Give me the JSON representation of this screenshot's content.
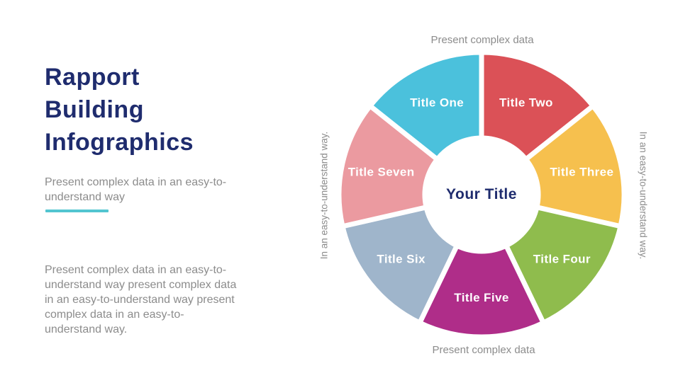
{
  "slide": {
    "background_color": "#FFFFFF",
    "left_panel": {
      "title_color": "#1F2C6E",
      "title_lines": [
        "Rapport",
        "Building",
        "Infographics"
      ],
      "subtitle": "Present complex data in an easy-to-understand way",
      "divider_color": "#52C5D0",
      "body_text": "Present complex data in an easy-to-understand way present complex data in an easy-to-understand way present complex data in an easy-to-understand way.",
      "text_color": "#8C8C8C"
    },
    "wheel": {
      "center_label": "Your Title",
      "center_label_color": "#1F2C6E",
      "top_caption": "Present complex data",
      "bottom_caption": "Present complex data",
      "left_caption": "In an easy-to-understand way.",
      "right_caption": "In an easy-to-understand way.",
      "segment_gap_color": "#FFFFFF",
      "segments": [
        {
          "label": "Title One",
          "color": "#4BC1DC"
        },
        {
          "label": "Title Two",
          "color": "#DB5157"
        },
        {
          "label": "Title Three",
          "color": "#F6C04E"
        },
        {
          "label": "Title Four",
          "color": "#8FBC4D"
        },
        {
          "label": "Title Five",
          "color": "#AF2D89"
        },
        {
          "label": "Title Six",
          "color": "#9FB5CB"
        },
        {
          "label": "Title Seven",
          "color": "#EB9AA0"
        }
      ]
    }
  }
}
